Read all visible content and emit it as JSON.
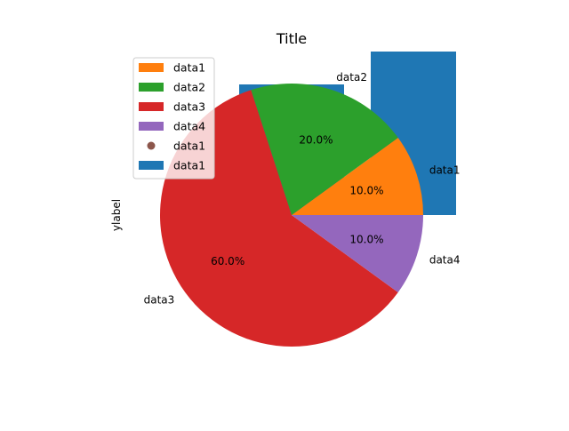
{
  "chart_data": {
    "type": "pie",
    "title": "Title",
    "ylabel": "ylabel",
    "slices": [
      {
        "label": "data1",
        "value": 10,
        "pct_label": "10.0%",
        "color": "#ff7f0e"
      },
      {
        "label": "data2",
        "value": 20,
        "pct_label": "20.0%",
        "color": "#2ca02c"
      },
      {
        "label": "data3",
        "value": 60,
        "pct_label": "60.0%",
        "color": "#d62728"
      },
      {
        "label": "data4",
        "value": 10,
        "pct_label": "10.0%",
        "color": "#9467bd"
      }
    ],
    "overlay_bars": [
      {
        "label": "data1",
        "value": 0.4,
        "color": "#1f77b4"
      },
      {
        "label": "data2",
        "value": 0.58,
        "color": "#1f77b4"
      }
    ],
    "overlay_point": {
      "label": "data1",
      "color": "#8c564b"
    },
    "legend": {
      "placement": "top-left",
      "entries": [
        {
          "label": "data1",
          "marker": "patch",
          "color": "#ff7f0e"
        },
        {
          "label": "data2",
          "marker": "patch",
          "color": "#2ca02c"
        },
        {
          "label": "data3",
          "marker": "patch",
          "color": "#d62728"
        },
        {
          "label": "data4",
          "marker": "patch",
          "color": "#9467bd"
        },
        {
          "label": "data1",
          "marker": "circle",
          "color": "#8c564b"
        },
        {
          "label": "data1",
          "marker": "patch",
          "color": "#1f77b4"
        }
      ]
    }
  }
}
